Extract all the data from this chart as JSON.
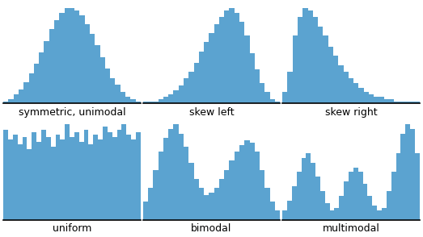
{
  "bar_color": "#5BA3D0",
  "background_color": "#ffffff",
  "labels": [
    "symmetric, unimodal",
    "skew left",
    "skew right",
    "uniform",
    "bimodal",
    "multimodal"
  ],
  "label_fontsize": 9,
  "symmetric_unimodal": [
    1,
    2,
    4,
    6,
    9,
    13,
    17,
    22,
    27,
    32,
    36,
    39,
    41,
    41,
    40,
    38,
    34,
    30,
    25,
    20,
    15,
    11,
    8,
    5,
    3,
    2,
    1
  ],
  "skew_left": [
    1,
    1,
    1,
    2,
    3,
    4,
    6,
    8,
    11,
    14,
    18,
    23,
    27,
    31,
    35,
    38,
    41,
    42,
    40,
    36,
    30,
    22,
    15,
    9,
    5,
    2,
    1
  ],
  "skew_right": [
    5,
    14,
    30,
    38,
    42,
    41,
    38,
    34,
    30,
    25,
    21,
    17,
    14,
    11,
    9,
    7,
    5,
    4,
    3,
    3,
    2,
    2,
    1,
    1,
    1,
    1,
    1
  ],
  "uniform": [
    36,
    32,
    34,
    30,
    33,
    28,
    35,
    31,
    36,
    33,
    29,
    34,
    32,
    38,
    33,
    35,
    31,
    36,
    30,
    34,
    32,
    37,
    35,
    33,
    36,
    38,
    34,
    32,
    35
  ],
  "bimodal": [
    8,
    14,
    22,
    30,
    36,
    40,
    42,
    38,
    32,
    25,
    18,
    14,
    11,
    12,
    14,
    18,
    22,
    26,
    30,
    33,
    35,
    34,
    30,
    22,
    14,
    8,
    4
  ],
  "multimodal": [
    4,
    8,
    14,
    20,
    26,
    28,
    24,
    18,
    12,
    7,
    4,
    5,
    10,
    16,
    20,
    22,
    20,
    15,
    10,
    6,
    4,
    5,
    12,
    20,
    28,
    36,
    40,
    38,
    28
  ]
}
